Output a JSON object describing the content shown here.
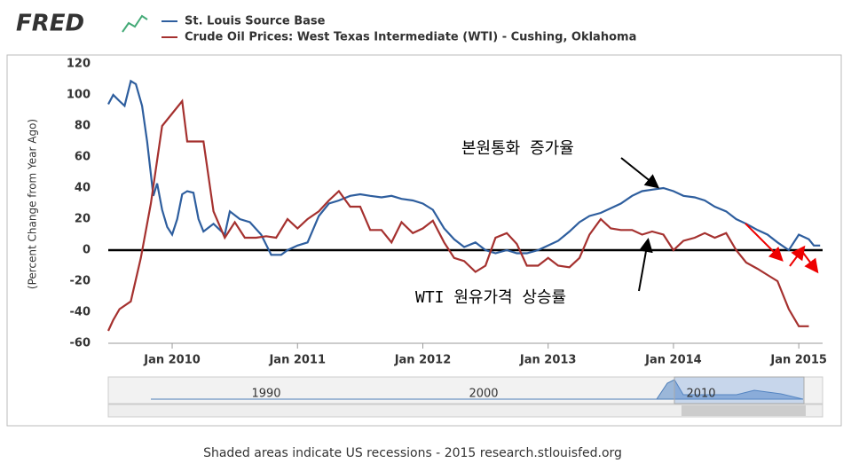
{
  "logo": "FRED",
  "footer": "Shaded areas indicate US recessions - 2015 research.stlouisfed.org",
  "navigator_labels": [
    "1990",
    "2000",
    "2010"
  ],
  "chart_data": {
    "type": "line",
    "y_label": "(Percent Change from Year Ago)",
    "annotations": [
      "본원통화 증가율",
      "WTI 원유가격 상승률"
    ],
    "xlim": [
      2009.49,
      2015.19
    ],
    "xticks": [
      {
        "value": 2010,
        "label": "Jan 2010"
      },
      {
        "value": 2011,
        "label": "Jan 2011"
      },
      {
        "value": 2012,
        "label": "Jan 2012"
      },
      {
        "value": 2013,
        "label": "Jan 2013"
      },
      {
        "value": 2014,
        "label": "Jan 2014"
      },
      {
        "value": 2015,
        "label": "Jan 2015"
      }
    ],
    "ylim": [
      -60,
      120
    ],
    "yticks": [
      -60,
      -40,
      -20,
      0,
      20,
      40,
      60,
      80,
      100,
      120
    ],
    "grid": false,
    "series": [
      {
        "name": "St. Louis Source Base",
        "color": "#2e5e9e",
        "x": [
          2009.49,
          2009.53,
          2009.58,
          2009.62,
          2009.67,
          2009.71,
          2009.76,
          2009.8,
          2009.85,
          2009.88,
          2009.92,
          2009.96,
          2010.0,
          2010.04,
          2010.08,
          2010.12,
          2010.17,
          2010.21,
          2010.25,
          2010.33,
          2010.42,
          2010.46,
          2010.54,
          2010.62,
          2010.71,
          2010.79,
          2010.87,
          2010.92,
          2011.0,
          2011.08,
          2011.17,
          2011.25,
          2011.33,
          2011.42,
          2011.5,
          2011.58,
          2011.67,
          2011.75,
          2011.83,
          2011.92,
          2012.0,
          2012.08,
          2012.17,
          2012.25,
          2012.33,
          2012.42,
          2012.5,
          2012.58,
          2012.67,
          2012.75,
          2012.83,
          2012.92,
          2013.0,
          2013.08,
          2013.17,
          2013.25,
          2013.33,
          2013.42,
          2013.5,
          2013.58,
          2013.67,
          2013.75,
          2013.83,
          2013.92,
          2014.0,
          2014.08,
          2014.17,
          2014.25,
          2014.33,
          2014.42,
          2014.5,
          2014.58,
          2014.67,
          2014.75,
          2014.83,
          2014.92,
          2015.0,
          2015.08,
          2015.12,
          2015.17
        ],
        "values": [
          94,
          100,
          96,
          93,
          109,
          107,
          93,
          70,
          35,
          43,
          26,
          15,
          10,
          20,
          36,
          38,
          37,
          20,
          12,
          17,
          10,
          25,
          20,
          18,
          10,
          -3,
          -3,
          0,
          3,
          5,
          22,
          30,
          32,
          35,
          36,
          35,
          34,
          35,
          33,
          32,
          30,
          26,
          14,
          7,
          2,
          5,
          0,
          -2,
          0,
          -2,
          -2,
          0,
          3,
          6,
          12,
          18,
          22,
          24,
          27,
          30,
          35,
          38,
          39,
          40,
          38,
          35,
          34,
          32,
          28,
          25,
          20,
          17,
          13,
          10,
          5,
          0,
          10,
          7,
          3,
          3
        ]
      },
      {
        "name": "Crude Oil Prices: West Texas Intermediate (WTI) - Cushing, Oklahoma",
        "color": "#a5312f",
        "x": [
          2009.49,
          2009.53,
          2009.58,
          2009.67,
          2009.75,
          2009.83,
          2009.92,
          2010.0,
          2010.08,
          2010.12,
          2010.25,
          2010.33,
          2010.42,
          2010.5,
          2010.58,
          2010.67,
          2010.75,
          2010.83,
          2010.92,
          2011.0,
          2011.08,
          2011.17,
          2011.25,
          2011.33,
          2011.42,
          2011.5,
          2011.58,
          2011.67,
          2011.75,
          2011.83,
          2011.92,
          2012.0,
          2012.08,
          2012.17,
          2012.25,
          2012.33,
          2012.42,
          2012.5,
          2012.58,
          2012.67,
          2012.75,
          2012.83,
          2012.92,
          2013.0,
          2013.08,
          2013.17,
          2013.25,
          2013.33,
          2013.42,
          2013.5,
          2013.58,
          2013.67,
          2013.75,
          2013.83,
          2013.92,
          2014.0,
          2014.08,
          2014.17,
          2014.25,
          2014.33,
          2014.42,
          2014.5,
          2014.58,
          2014.67,
          2014.75,
          2014.83,
          2014.92,
          2015.0,
          2015.08
        ],
        "values": [
          -52,
          -45,
          -38,
          -33,
          -5,
          30,
          80,
          88,
          96,
          70,
          70,
          25,
          8,
          18,
          8,
          8,
          9,
          8,
          20,
          14,
          20,
          25,
          32,
          38,
          28,
          28,
          13,
          13,
          5,
          18,
          11,
          14,
          19,
          5,
          -5,
          -7,
          -14,
          -10,
          8,
          11,
          4,
          -10,
          -10,
          -5,
          -10,
          -11,
          -5,
          10,
          20,
          14,
          13,
          13,
          10,
          12,
          10,
          0,
          6,
          8,
          11,
          8,
          11,
          0,
          -8,
          -12,
          -16,
          -20,
          -38,
          -49,
          -49
        ]
      }
    ]
  }
}
